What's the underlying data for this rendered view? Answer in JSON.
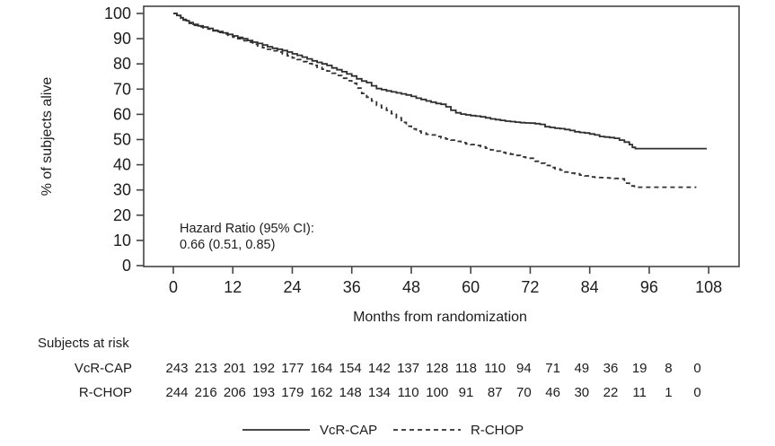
{
  "chart_data": {
    "type": "line",
    "subtype": "kaplan-meier-step",
    "title": "",
    "xlabel": "Months from randomization",
    "ylabel": "% of subjects alive",
    "xlim": [
      0,
      108
    ],
    "ylim": [
      0,
      100
    ],
    "xticks": [
      0,
      12,
      24,
      36,
      48,
      60,
      72,
      84,
      96,
      108
    ],
    "yticks": [
      0,
      10,
      20,
      30,
      40,
      50,
      60,
      70,
      80,
      90,
      100
    ],
    "grid": false,
    "line_color": "#2f2f2f",
    "legend_position": "bottom-center",
    "annotation": {
      "line1": "Hazard Ratio (95% CI):",
      "line2": "0.66 (0.51, 0.85)"
    },
    "series": [
      {
        "name": "VcR-CAP",
        "style": "solid",
        "points": [
          [
            0,
            100
          ],
          [
            0.7,
            99.2
          ],
          [
            1.5,
            98.3
          ],
          [
            2,
            97.6
          ],
          [
            2.6,
            97.1
          ],
          [
            3.2,
            96.4
          ],
          [
            4,
            95.7
          ],
          [
            5,
            95.1
          ],
          [
            6,
            94.6
          ],
          [
            7,
            94.1
          ],
          [
            8,
            93.3
          ],
          [
            9,
            92.8
          ],
          [
            10,
            92.3
          ],
          [
            11,
            91.7
          ],
          [
            12,
            91.1
          ],
          [
            13,
            90.5
          ],
          [
            14,
            90.0
          ],
          [
            15,
            89.3
          ],
          [
            16,
            88.6
          ],
          [
            17,
            88.1
          ],
          [
            18,
            87.5
          ],
          [
            19,
            86.8
          ],
          [
            20,
            86.2
          ],
          [
            21,
            85.8
          ],
          [
            22,
            85.3
          ],
          [
            23,
            84.7
          ],
          [
            24,
            84.0
          ],
          [
            25,
            83.4
          ],
          [
            26,
            82.7
          ],
          [
            27,
            82.0
          ],
          [
            28,
            81.2
          ],
          [
            29,
            80.6
          ],
          [
            30,
            80.0
          ],
          [
            31,
            79.4
          ],
          [
            32,
            78.4
          ],
          [
            33,
            77.7
          ],
          [
            34,
            76.9
          ],
          [
            35,
            76.0
          ],
          [
            36,
            75.2
          ],
          [
            37,
            74.1
          ],
          [
            38,
            73.2
          ],
          [
            39,
            72.6
          ],
          [
            40,
            71.3
          ],
          [
            41,
            70.2
          ],
          [
            42,
            69.8
          ],
          [
            43,
            69.3
          ],
          [
            44,
            68.9
          ],
          [
            45,
            68.5
          ],
          [
            46,
            68.1
          ],
          [
            47,
            67.7
          ],
          [
            48,
            67.1
          ],
          [
            49,
            66.4
          ],
          [
            50,
            65.9
          ],
          [
            51,
            65.3
          ],
          [
            52,
            64.8
          ],
          [
            53,
            64.3
          ],
          [
            54,
            64.0
          ],
          [
            55,
            63.0
          ],
          [
            56,
            61.6
          ],
          [
            57,
            60.6
          ],
          [
            58,
            60.1
          ],
          [
            59,
            59.8
          ],
          [
            60,
            59.5
          ],
          [
            61,
            59.3
          ],
          [
            62,
            59.0
          ],
          [
            63,
            58.6
          ],
          [
            64,
            58.2
          ],
          [
            65,
            57.9
          ],
          [
            66,
            57.6
          ],
          [
            67,
            57.3
          ],
          [
            68,
            57.1
          ],
          [
            69,
            56.9
          ],
          [
            70,
            56.7
          ],
          [
            71,
            56.6
          ],
          [
            72,
            56.5
          ],
          [
            73,
            56.3
          ],
          [
            74,
            56.0
          ],
          [
            75,
            55.1
          ],
          [
            76,
            54.8
          ],
          [
            77,
            54.5
          ],
          [
            78,
            54.3
          ],
          [
            79,
            54.0
          ],
          [
            80,
            53.6
          ],
          [
            81,
            53.1
          ],
          [
            82,
            52.8
          ],
          [
            83,
            52.6
          ],
          [
            84,
            52.2
          ],
          [
            85,
            51.8
          ],
          [
            86,
            51.2
          ],
          [
            87,
            51.0
          ],
          [
            88,
            50.8
          ],
          [
            89,
            50.5
          ],
          [
            90,
            49.8
          ],
          [
            91,
            49.0
          ],
          [
            92,
            48.0
          ],
          [
            92.6,
            46.9
          ],
          [
            93.2,
            46.4
          ],
          [
            107.6,
            46.4
          ]
        ]
      },
      {
        "name": "R-CHOP",
        "style": "dashed",
        "points": [
          [
            0,
            100
          ],
          [
            0.7,
            99.1
          ],
          [
            1.5,
            98.1
          ],
          [
            2,
            97.4
          ],
          [
            2.6,
            96.9
          ],
          [
            3.2,
            96.1
          ],
          [
            4,
            95.3
          ],
          [
            5,
            94.7
          ],
          [
            6,
            94.3
          ],
          [
            7,
            93.8
          ],
          [
            8,
            93.1
          ],
          [
            9,
            92.5
          ],
          [
            10,
            91.9
          ],
          [
            11,
            91.3
          ],
          [
            12,
            90.6
          ],
          [
            13,
            90.0
          ],
          [
            14,
            89.2
          ],
          [
            15,
            88.6
          ],
          [
            16,
            87.8
          ],
          [
            17,
            87.1
          ],
          [
            18,
            86.4
          ],
          [
            19,
            85.8
          ],
          [
            20,
            85.2
          ],
          [
            21,
            84.7
          ],
          [
            22,
            84.0
          ],
          [
            23,
            83.2
          ],
          [
            24,
            82.4
          ],
          [
            25,
            81.7
          ],
          [
            26,
            80.9
          ],
          [
            27,
            80.1
          ],
          [
            28,
            79.4
          ],
          [
            29,
            78.6
          ],
          [
            30,
            77.9
          ],
          [
            31,
            77.2
          ],
          [
            32,
            76.3
          ],
          [
            33,
            75.4
          ],
          [
            34,
            74.3
          ],
          [
            35,
            73.3
          ],
          [
            36,
            72.3
          ],
          [
            37,
            70.4
          ],
          [
            38,
            68.3
          ],
          [
            39,
            66.8
          ],
          [
            40,
            65.3
          ],
          [
            41,
            63.6
          ],
          [
            42,
            62.6
          ],
          [
            43,
            61.6
          ],
          [
            44,
            60.3
          ],
          [
            45,
            58.6
          ],
          [
            46,
            56.8
          ],
          [
            47,
            55.3
          ],
          [
            48,
            54.2
          ],
          [
            49,
            53.3
          ],
          [
            50,
            52.6
          ],
          [
            51,
            52.1
          ],
          [
            52,
            51.8
          ],
          [
            53,
            51.2
          ],
          [
            54,
            50.6
          ],
          [
            55,
            50.2
          ],
          [
            56,
            49.8
          ],
          [
            57,
            49.3
          ],
          [
            58,
            48.8
          ],
          [
            59,
            48.3
          ],
          [
            60,
            48.0
          ],
          [
            61,
            47.6
          ],
          [
            62,
            47.1
          ],
          [
            63,
            46.6
          ],
          [
            64,
            45.9
          ],
          [
            65,
            45.4
          ],
          [
            66,
            44.9
          ],
          [
            67,
            44.6
          ],
          [
            68,
            44.2
          ],
          [
            69,
            43.7
          ],
          [
            70,
            43.1
          ],
          [
            71,
            42.9
          ],
          [
            72,
            42.6
          ],
          [
            73,
            41.4
          ],
          [
            74,
            40.6
          ],
          [
            75,
            39.7
          ],
          [
            76,
            38.9
          ],
          [
            77,
            38.4
          ],
          [
            78,
            37.9
          ],
          [
            79,
            37.1
          ],
          [
            80,
            36.7
          ],
          [
            81,
            36.4
          ],
          [
            82,
            35.9
          ],
          [
            83,
            35.6
          ],
          [
            84,
            35.2
          ],
          [
            85,
            35.0
          ],
          [
            86,
            34.9
          ],
          [
            87,
            34.8
          ],
          [
            88,
            34.7
          ],
          [
            89,
            34.6
          ],
          [
            90,
            34.4
          ],
          [
            91,
            32.7
          ],
          [
            92,
            31.6
          ],
          [
            93,
            31.1
          ],
          [
            105.5,
            31.1
          ]
        ]
      }
    ],
    "risk_table": {
      "title": "Subjects at risk",
      "months": [
        0,
        6,
        12,
        18,
        24,
        30,
        36,
        42,
        48,
        54,
        60,
        66,
        72,
        78,
        84,
        90,
        96,
        102,
        108
      ],
      "rows": [
        {
          "label": "VcR-CAP",
          "values": [
            243,
            213,
            201,
            192,
            177,
            164,
            154,
            142,
            137,
            128,
            118,
            110,
            94,
            71,
            49,
            36,
            19,
            8,
            0
          ]
        },
        {
          "label": "R-CHOP",
          "values": [
            244,
            216,
            206,
            193,
            179,
            162,
            148,
            134,
            110,
            100,
            91,
            87,
            70,
            46,
            30,
            22,
            11,
            1,
            0
          ]
        }
      ]
    }
  }
}
